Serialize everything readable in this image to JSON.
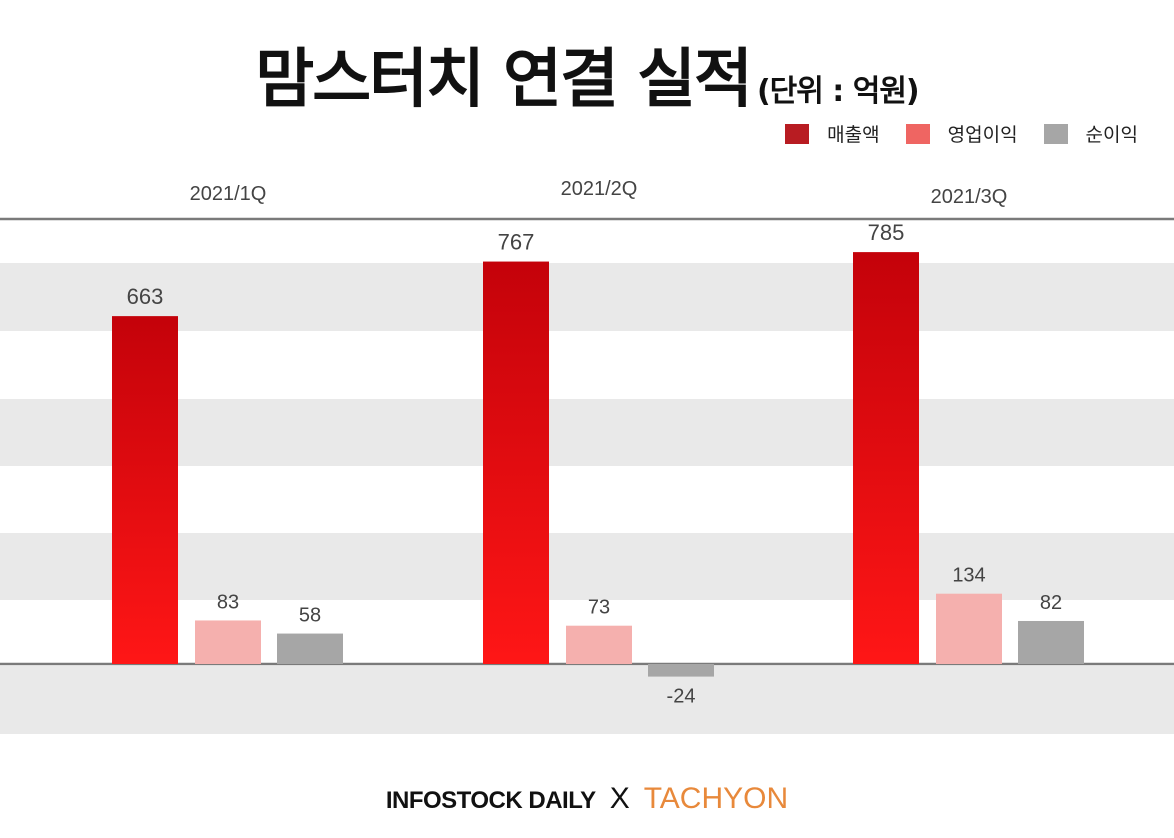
{
  "header": {
    "title": "맘스터치 연결 실적",
    "subtitle": "(단위 : 억원)"
  },
  "chart_data": {
    "type": "bar",
    "title": "맘스터치 연결 실적",
    "subtitle": "(단위 : 억원)",
    "categories": [
      "2021/1Q",
      "2021/2Q",
      "2021/3Q"
    ],
    "series": [
      {
        "name": "매출액",
        "values": [
          663,
          767,
          785
        ],
        "color": "#c0131b"
      },
      {
        "name": "영업이익",
        "values": [
          83,
          73,
          134
        ],
        "color": "#f5b0ae"
      },
      {
        "name": "순이익",
        "values": [
          58,
          -24,
          82
        ],
        "color": "#a6a6a6"
      }
    ],
    "ylim": [
      -100,
      850
    ],
    "legend_position": "top-right",
    "grid": "alternating horizontal bands",
    "legend_swatch_colors": [
      "#c0131b",
      "#f06664",
      "#a6a6a6"
    ]
  },
  "footer": {
    "brand_left": "INFOSTOCK DAILY",
    "separator": "X",
    "brand_right": "TACHYON"
  }
}
